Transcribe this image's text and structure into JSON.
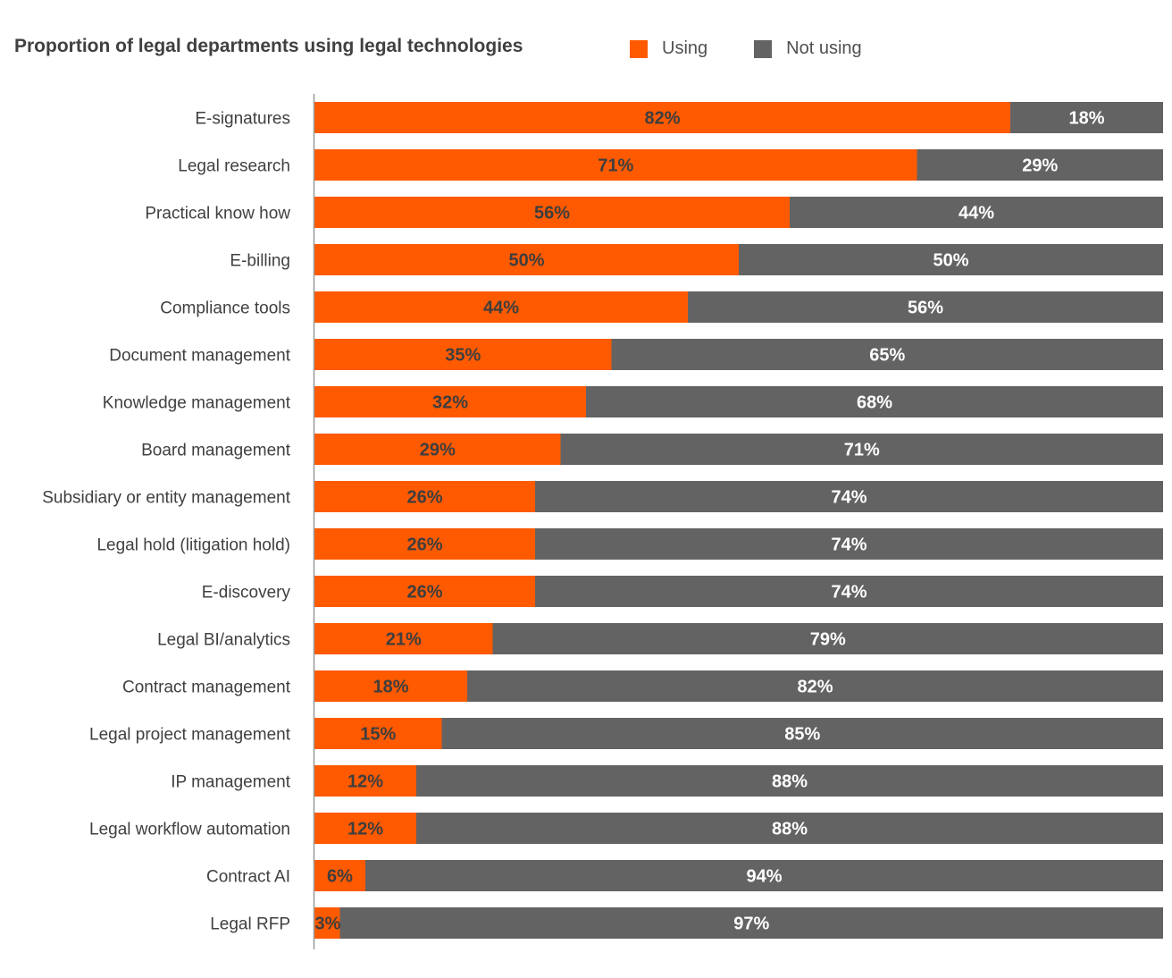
{
  "subtitle": "Proportion of legal departments using legal technologies",
  "legend": [
    {
      "label": "Using",
      "color": "#ff5a00"
    },
    {
      "label": "Not using",
      "color": "#636363"
    }
  ],
  "colors": {
    "using": "#ff5a00",
    "not_using": "#636363",
    "axis": "#999999"
  },
  "chart_data": {
    "type": "bar",
    "orientation": "horizontal",
    "stacked": true,
    "title": "Proportion of legal departments using legal technologies",
    "xlabel": "",
    "ylabel": "",
    "xlim": [
      0,
      100
    ],
    "unit": "%",
    "grid": false,
    "legend_position": "top-right",
    "categories": [
      "E-signatures",
      "Legal research",
      "Practical know how",
      "E-billing",
      "Compliance tools",
      "Document management",
      "Knowledge management",
      "Board management",
      "Subsidiary or entity management",
      "Legal hold (litigation hold)",
      "E-discovery",
      "Legal BI/analytics",
      "Contract management",
      "Legal project management",
      "IP management",
      "Legal workflow automation",
      "Contract AI",
      "Legal RFP"
    ],
    "series": [
      {
        "name": "Using",
        "values": [
          82,
          71,
          56,
          50,
          44,
          35,
          32,
          29,
          26,
          26,
          26,
          21,
          18,
          15,
          12,
          12,
          6,
          3
        ]
      },
      {
        "name": "Not using",
        "values": [
          18,
          29,
          44,
          50,
          56,
          65,
          68,
          71,
          74,
          74,
          74,
          79,
          82,
          85,
          88,
          88,
          94,
          97
        ]
      }
    ]
  }
}
